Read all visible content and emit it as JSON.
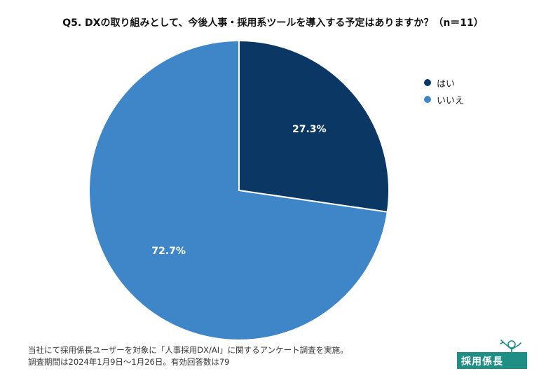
{
  "chart_data": {
    "type": "pie",
    "title": "Q5. DXの取り組みとして、今後人事・採用系ツールを導入する予定はありますか？（n＝11）",
    "slices": [
      {
        "label": "はい",
        "value": 27.3,
        "display": "27.3%",
        "color": "#0b3764"
      },
      {
        "label": "いいえ",
        "value": 72.7,
        "display": "72.7%",
        "color": "#3f86c8"
      }
    ],
    "start_angle_deg": 0,
    "direction": "clockwise",
    "legend": "right"
  },
  "footnote": {
    "line1": "当社にて採用係長ユーザーを対象に「人事採用DX/AI」に関するアンケート調査を実施。",
    "line2": "調査期間は2024年1月9日〜1月26日。有効回答数は79"
  },
  "logo": {
    "text": "採用係長"
  }
}
